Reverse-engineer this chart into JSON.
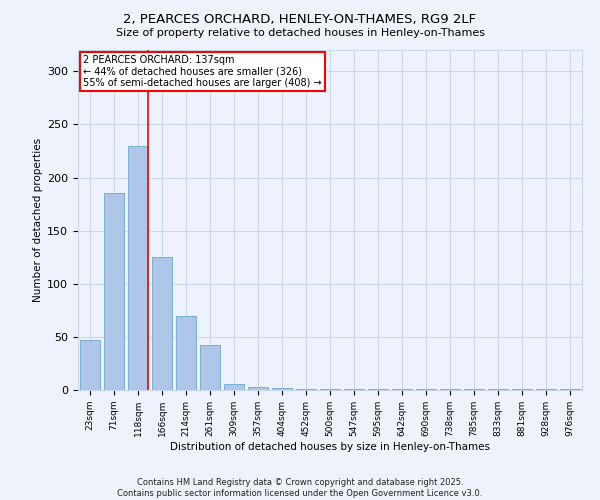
{
  "title_line1": "2, PEARCES ORCHARD, HENLEY-ON-THAMES, RG9 2LF",
  "title_line2": "Size of property relative to detached houses in Henley-on-Thames",
  "xlabel": "Distribution of detached houses by size in Henley-on-Thames",
  "ylabel": "Number of detached properties",
  "categories": [
    "23sqm",
    "71sqm",
    "118sqm",
    "166sqm",
    "214sqm",
    "261sqm",
    "309sqm",
    "357sqm",
    "404sqm",
    "452sqm",
    "500sqm",
    "547sqm",
    "595sqm",
    "642sqm",
    "690sqm",
    "738sqm",
    "785sqm",
    "833sqm",
    "881sqm",
    "928sqm",
    "976sqm"
  ],
  "values": [
    47,
    185,
    230,
    125,
    70,
    42,
    6,
    3,
    2,
    1,
    1,
    1,
    1,
    1,
    1,
    1,
    1,
    1,
    1,
    1,
    1
  ],
  "bar_color": "#aec6e8",
  "bar_edge_color": "#7aafd4",
  "grid_color": "#c8d8ee",
  "vline_color": "red",
  "vline_x": 2.42,
  "annotation_text": "2 PEARCES ORCHARD: 137sqm\n← 44% of detached houses are smaller (326)\n55% of semi-detached houses are larger (408) →",
  "annotation_box_color": "white",
  "annotation_box_edge": "red",
  "ylim": [
    0,
    320
  ],
  "yticks": [
    0,
    50,
    100,
    150,
    200,
    250,
    300
  ],
  "footer_line1": "Contains HM Land Registry data © Crown copyright and database right 2025.",
  "footer_line2": "Contains public sector information licensed under the Open Government Licence v3.0.",
  "bg_color": "#eef2fa"
}
